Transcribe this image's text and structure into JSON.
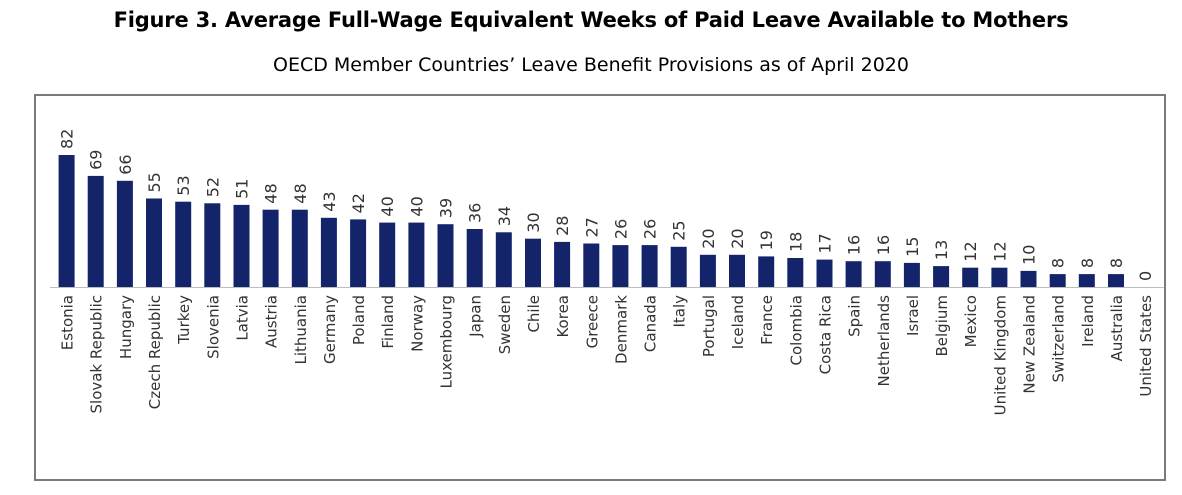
{
  "title": "Figure 3. Average Full-Wage Equivalent Weeks of Paid Leave Available to Mothers",
  "subtitle": "OECD Member Countries’ Leave Benefit Provisions as of April 2020",
  "colors": {
    "bar": "#14246b",
    "text": "#333333",
    "axis": "#bdbdbd"
  },
  "chart_data": {
    "type": "bar",
    "categories": [
      "Estonia",
      "Slovak Republic",
      "Hungary",
      "Czech Republic",
      "Turkey",
      "Slovenia",
      "Latvia",
      "Austria",
      "Lithuania",
      "Germany",
      "Poland",
      "Finland",
      "Norway",
      "Luxembourg",
      "Japan",
      "Sweden",
      "Chile",
      "Korea",
      "Greece",
      "Denmark",
      "Canada",
      "Italy",
      "Portugal",
      "Iceland",
      "France",
      "Colombia",
      "Costa Rica",
      "Spain",
      "Netherlands",
      "Israel",
      "Belgium",
      "Mexico",
      "United Kingdom",
      "New Zealand",
      "Switzerland",
      "Ireland",
      "Australia",
      "United States"
    ],
    "values": [
      82,
      69,
      66,
      55,
      53,
      52,
      51,
      48,
      48,
      43,
      42,
      40,
      40,
      39,
      36,
      34,
      30,
      28,
      27,
      26,
      26,
      25,
      20,
      20,
      19,
      18,
      17,
      16,
      16,
      15,
      13,
      12,
      12,
      10,
      8,
      8,
      8,
      0
    ],
    "data_labels": [
      "82",
      "69",
      "66",
      "55",
      "53",
      "52",
      "51",
      "48",
      "48",
      "43",
      "42",
      "40",
      "40",
      "39",
      "36",
      "34",
      "30",
      "28",
      "27",
      "26",
      "26",
      "25",
      "20",
      "20",
      "19",
      "18",
      "17",
      "16",
      "16",
      "15",
      "13",
      "12",
      "12",
      "10",
      "8",
      "8",
      "8",
      "0"
    ],
    "xlabel": "",
    "ylabel": "",
    "ylim": [
      0,
      82
    ],
    "grid": false,
    "legend": "none"
  }
}
